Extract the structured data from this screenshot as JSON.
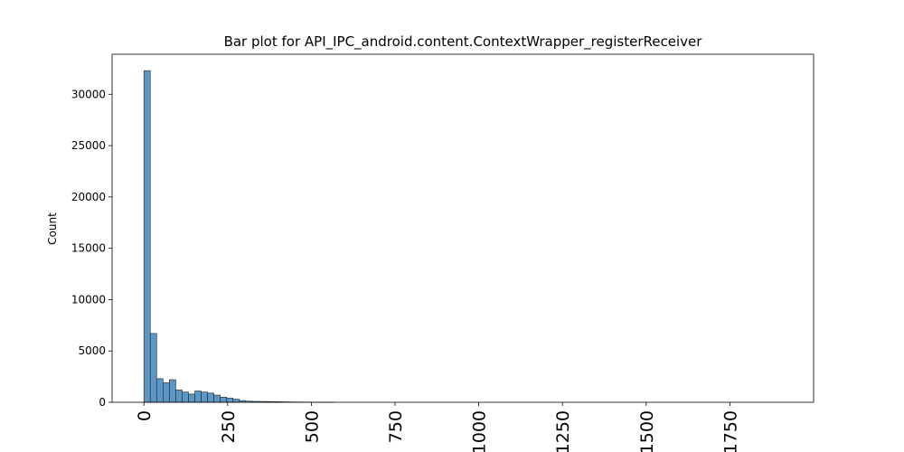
{
  "chart_data": {
    "type": "histogram",
    "title": "Bar plot for API_IPC_android.content.ContextWrapper_registerReceiver",
    "ylabel": "Count",
    "color": "#5b97c5",
    "bins": [
      0,
      19,
      38,
      57,
      76,
      95,
      114,
      133,
      152,
      171,
      190,
      209,
      228,
      247,
      266,
      285,
      304,
      323,
      342,
      361,
      380,
      399,
      418,
      437,
      456,
      475,
      494,
      513,
      532,
      551,
      570,
      589,
      608,
      627,
      646,
      665,
      684,
      703,
      722,
      741,
      760,
      779,
      798,
      817,
      836,
      855,
      874,
      893,
      912,
      931,
      950,
      969,
      988,
      1007,
      1026,
      1045,
      1064,
      1083,
      1102,
      1121,
      1140,
      1159,
      1178,
      1197,
      1216,
      1235,
      1254,
      1273,
      1292,
      1311,
      1330,
      1349,
      1368,
      1387,
      1406,
      1425,
      1444,
      1463,
      1482,
      1501,
      1520,
      1539,
      1558,
      1577,
      1596,
      1615,
      1634,
      1653,
      1672,
      1691,
      1710,
      1729,
      1748,
      1767,
      1786,
      1805,
      1824,
      1843,
      1862,
      1881,
      1900
    ],
    "values": [
      32300,
      6700,
      2300,
      1900,
      2200,
      1200,
      1000,
      800,
      1100,
      1000,
      900,
      700,
      500,
      400,
      300,
      170,
      110,
      90,
      80,
      70,
      60,
      50,
      40,
      30,
      25,
      20,
      15,
      10,
      8,
      5,
      0,
      0,
      0,
      0,
      0,
      0,
      0,
      0,
      0,
      0,
      0,
      0,
      0,
      0,
      0,
      0,
      0,
      0,
      0,
      0,
      0,
      0,
      0,
      0,
      0,
      0,
      0,
      0,
      0,
      0,
      0,
      0,
      0,
      0,
      0,
      0,
      0,
      0,
      0,
      0,
      0,
      0,
      0,
      0,
      0,
      0,
      0,
      0,
      0,
      0,
      0,
      0,
      0,
      0,
      0,
      0,
      0,
      0,
      0,
      0,
      0,
      0,
      0,
      0,
      0,
      0,
      0,
      0,
      0,
      0
    ],
    "xlim": [
      -95,
      2000
    ],
    "xticks": [
      0,
      250,
      500,
      750,
      1000,
      1250,
      1500,
      1750
    ],
    "ylim": [
      0,
      33900
    ],
    "yticks": [
      0,
      5000,
      10000,
      15000,
      20000,
      25000,
      30000
    ]
  }
}
